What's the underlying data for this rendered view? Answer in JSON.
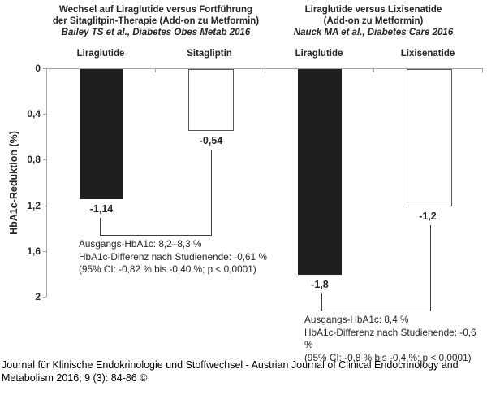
{
  "chart_data": [
    {
      "type": "bar",
      "title": "Wechsel auf Liraglutide versus Fortführung der Sitaglitpin-Therapie (Add-on zu Metformin)",
      "title_lines": [
        "Wechsel auf Liraglutide versus Fortführung",
        "der Sitaglitpin-Therapie (Add-on zu Metformin)"
      ],
      "subtitle": "Bailey TS et al., Diabetes Obes Metab 2016",
      "categories": [
        "Liraglutide",
        "Sitagliptin"
      ],
      "values": [
        -1.14,
        -0.54
      ],
      "value_labels": [
        "-1,14",
        "-0,54"
      ],
      "bar_fills": [
        "black",
        "white"
      ],
      "ylabel": "HbA1c-Reduktion (%)",
      "ylim": [
        0,
        2
      ],
      "y_direction": "reduction plotted downward from 0",
      "yticks": [
        "0",
        "0,4",
        "0,8",
        "1,2",
        "1,6",
        "2"
      ],
      "annotation_lines": [
        "Ausgangs-HbA1c: 8,2–8,3 %",
        "HbA1c-Differenz nach Studienende: -0,61 %",
        "(95% CI: -0,82 % bis -0,40 %; p < 0,0001)"
      ]
    },
    {
      "type": "bar",
      "title": "Liraglutide versus Lixisenatide (Add-on zu Metformin)",
      "title_lines": [
        "Liraglutide versus Lixisenatide",
        "(Add-on zu Metformin)"
      ],
      "subtitle": "Nauck MA et al., Diabetes Care 2016",
      "categories": [
        "Liraglutide",
        "Lixisenatide"
      ],
      "values": [
        -1.8,
        -1.2
      ],
      "value_labels": [
        "-1,8",
        "-1,2"
      ],
      "bar_fills": [
        "black",
        "white"
      ],
      "ylabel": "HbA1c-Reduktion (%)",
      "ylim": [
        0,
        2
      ],
      "y_direction": "reduction plotted downward from 0",
      "yticks": [
        "0",
        "0,4",
        "0,8",
        "1,2",
        "1,6",
        "2"
      ],
      "annotation_lines": [
        "Ausgangs-HbA1c: 8,4 %",
        "HbA1c-Differenz nach Studienende: -0,6 %",
        "(95% CI: -0,8 % bis -0,4 %; p < 0,0001)"
      ]
    }
  ],
  "y_axis": {
    "title": "HbA1c-Reduktion (%)",
    "ticks": [
      "0",
      "0,4",
      "0,8",
      "1,2",
      "1,6",
      "2"
    ]
  },
  "footer": {
    "line1": "Journal für Klinische Endokrinologie und Stoffwechsel - Austrian Journal of Clinical Endocrinology and",
    "line2": "Metabolism 2016; 9 (3): 84-86 ©"
  },
  "colors": {
    "bar_black": "#1f1f1f",
    "bar_white": "#ffffff",
    "bar_border": "#595959",
    "axis_line": "#a6a6a6",
    "text": "#262626",
    "connector": "#404040"
  }
}
